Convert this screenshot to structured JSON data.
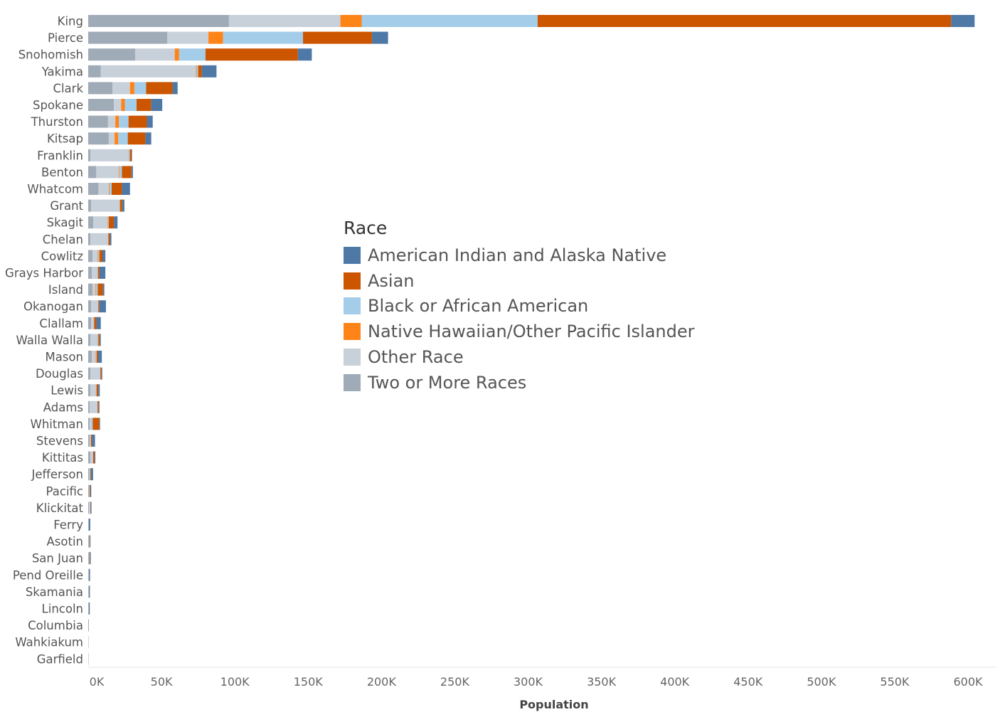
{
  "chart_data": {
    "type": "bar",
    "orientation": "horizontal",
    "stacked": true,
    "title": "",
    "xlabel": "Population",
    "ylabel": "",
    "xlim": [
      0,
      620000
    ],
    "x_ticks": [
      0,
      50000,
      100000,
      150000,
      200000,
      250000,
      300000,
      350000,
      400000,
      450000,
      500000,
      550000,
      600000
    ],
    "x_tick_labels": [
      "0K",
      "50K",
      "100K",
      "150K",
      "200K",
      "250K",
      "300K",
      "350K",
      "400K",
      "450K",
      "500K",
      "550K",
      "600K"
    ],
    "grid": false,
    "legend": {
      "title": "Race",
      "placement": "center"
    },
    "categories": [
      "King",
      "Pierce",
      "Snohomish",
      "Yakima",
      "Clark",
      "Spokane",
      "Thurston",
      "Kitsap",
      "Franklin",
      "Benton",
      "Whatcom",
      "Grant",
      "Skagit",
      "Chelan",
      "Cowlitz",
      "Grays Harbor",
      "Island",
      "Okanogan",
      "Clallam",
      "Walla Walla",
      "Mason",
      "Douglas",
      "Lewis",
      "Adams",
      "Whitman",
      "Stevens",
      "Kittitas",
      "Jefferson",
      "Pacific",
      "Klickitat",
      "Ferry",
      "Asotin",
      "San Juan",
      "Pend Oreille",
      "Skamania",
      "Lincoln",
      "Columbia",
      "Wahkiakum",
      "Garfield"
    ],
    "series": [
      {
        "name": "Two or More Races",
        "color": "#a0abb8",
        "values": [
          96000,
          54000,
          32000,
          8500,
          16500,
          17500,
          13500,
          14000,
          1500,
          5500,
          7000,
          2000,
          3500,
          1500,
          3000,
          2500,
          3000,
          2000,
          2000,
          1500,
          2500,
          1500,
          1500,
          1000,
          1000,
          1000,
          1500,
          800,
          500,
          500,
          200,
          400,
          400,
          300,
          300,
          200,
          100,
          50,
          50
        ]
      },
      {
        "name": "Other Race",
        "color": "#c8d0da",
        "values": [
          76000,
          28000,
          27000,
          65000,
          12000,
          5000,
          5000,
          4000,
          26000,
          15500,
          7000,
          19000,
          9500,
          12000,
          3500,
          3500,
          2000,
          4500,
          1500,
          4500,
          2500,
          6500,
          3500,
          5000,
          1000,
          500,
          1500,
          300,
          300,
          800,
          100,
          200,
          200,
          100,
          100,
          100,
          100,
          50,
          50
        ]
      },
      {
        "name": "Native Hawaiian/Other Pacific Islander",
        "color": "#ff8418",
        "values": [
          14500,
          10000,
          3000,
          500,
          3000,
          2500,
          2500,
          2500,
          200,
          500,
          500,
          200,
          300,
          100,
          500,
          200,
          500,
          100,
          100,
          200,
          300,
          100,
          200,
          100,
          100,
          50,
          100,
          50,
          50,
          50,
          20,
          50,
          50,
          20,
          20,
          20,
          20,
          10,
          10
        ]
      },
      {
        "name": "Black or African American",
        "color": "#a3cde9",
        "values": [
          120000,
          54500,
          18000,
          1000,
          8000,
          8000,
          6500,
          6500,
          700,
          1500,
          1500,
          500,
          700,
          200,
          700,
          500,
          1000,
          300,
          500,
          700,
          500,
          200,
          500,
          300,
          1000,
          300,
          300,
          200,
          100,
          100,
          20,
          100,
          100,
          50,
          50,
          50,
          30,
          20,
          20
        ]
      },
      {
        "name": "Asian",
        "color": "#cc5500",
        "values": [
          282000,
          47000,
          63000,
          2500,
          18000,
          10000,
          12500,
          12000,
          1200,
          6500,
          7000,
          1500,
          3500,
          1000,
          2000,
          1000,
          3500,
          700,
          1500,
          1000,
          1000,
          800,
          1200,
          800,
          4500,
          800,
          1000,
          500,
          500,
          300,
          50,
          300,
          300,
          100,
          100,
          100,
          50,
          20,
          20
        ]
      },
      {
        "name": "American Indian and Alaska Native",
        "color": "#4e79a7",
        "values": [
          16000,
          11000,
          9500,
          10000,
          3500,
          7500,
          4000,
          4000,
          300,
          1000,
          5500,
          1500,
          2500,
          1000,
          2000,
          4000,
          1000,
          4500,
          3000,
          700,
          2500,
          500,
          1000,
          500,
          500,
          2000,
          500,
          1500,
          600,
          500,
          1000,
          500,
          700,
          700,
          600,
          600,
          200,
          100,
          100
        ]
      }
    ]
  }
}
